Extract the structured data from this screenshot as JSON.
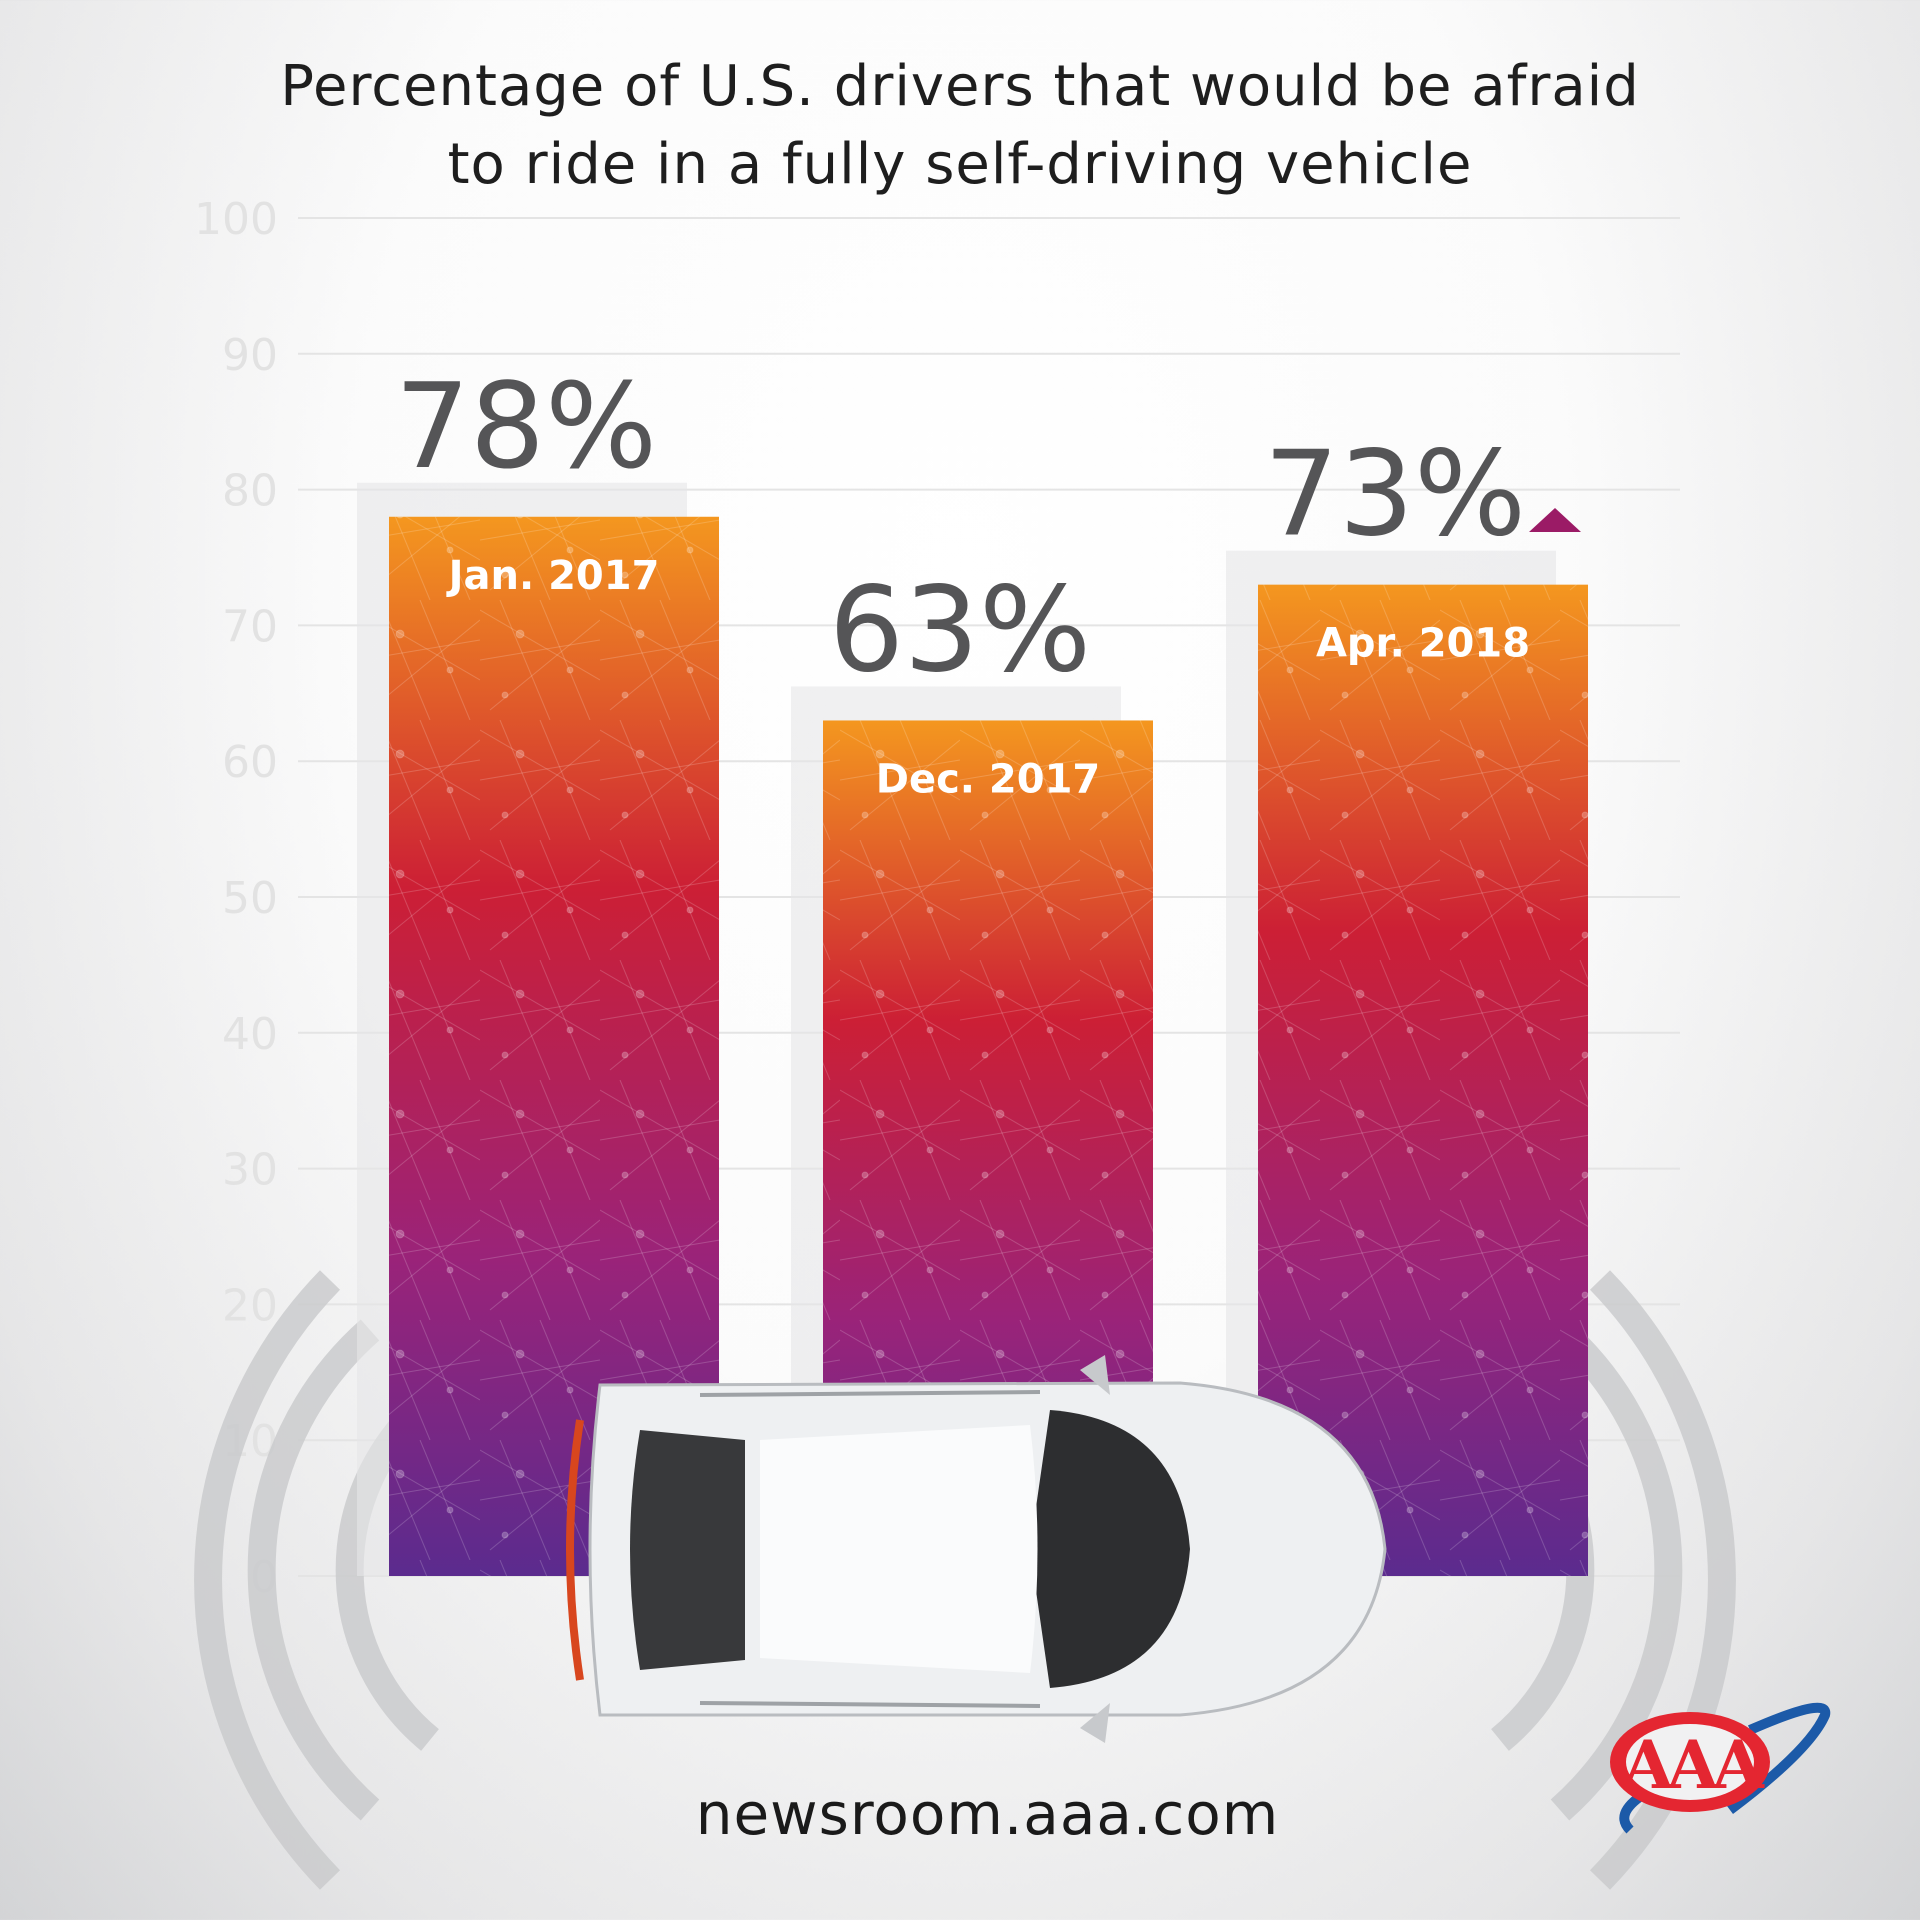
{
  "title_lines": [
    "Percentage of U.S. drivers that would be afraid",
    "to ride in a fully self-driving vehicle"
  ],
  "footer": "newsroom.aaa.com",
  "logo_text": "AAA",
  "colors": {
    "bar_top": "#f4971f",
    "bar_mid": "#cc1f35",
    "bar_low": "#9a2379",
    "bar_bottom": "#5b2b8e",
    "value_text": "#555557",
    "axis_text": "#e2e2e2",
    "trend_up": "#9b1b66"
  },
  "chart_data": {
    "type": "bar",
    "title": "Percentage of U.S. drivers that would be afraid to ride in a fully self-driving vehicle",
    "categories": [
      "Jan. 2017",
      "Dec. 2017",
      "Apr. 2018"
    ],
    "values": [
      78,
      63,
      73
    ],
    "data_labels": [
      "78%",
      "63%",
      "73%"
    ],
    "ylim": [
      0,
      100
    ],
    "yticks": [
      "0",
      "10",
      "20",
      "30",
      "40",
      "50",
      "60",
      "70",
      "80",
      "90",
      "100"
    ],
    "grid": true,
    "annotations": [
      {
        "category": "Apr. 2018",
        "icon": "up-triangle-icon",
        "meaning": "increase"
      }
    ]
  }
}
